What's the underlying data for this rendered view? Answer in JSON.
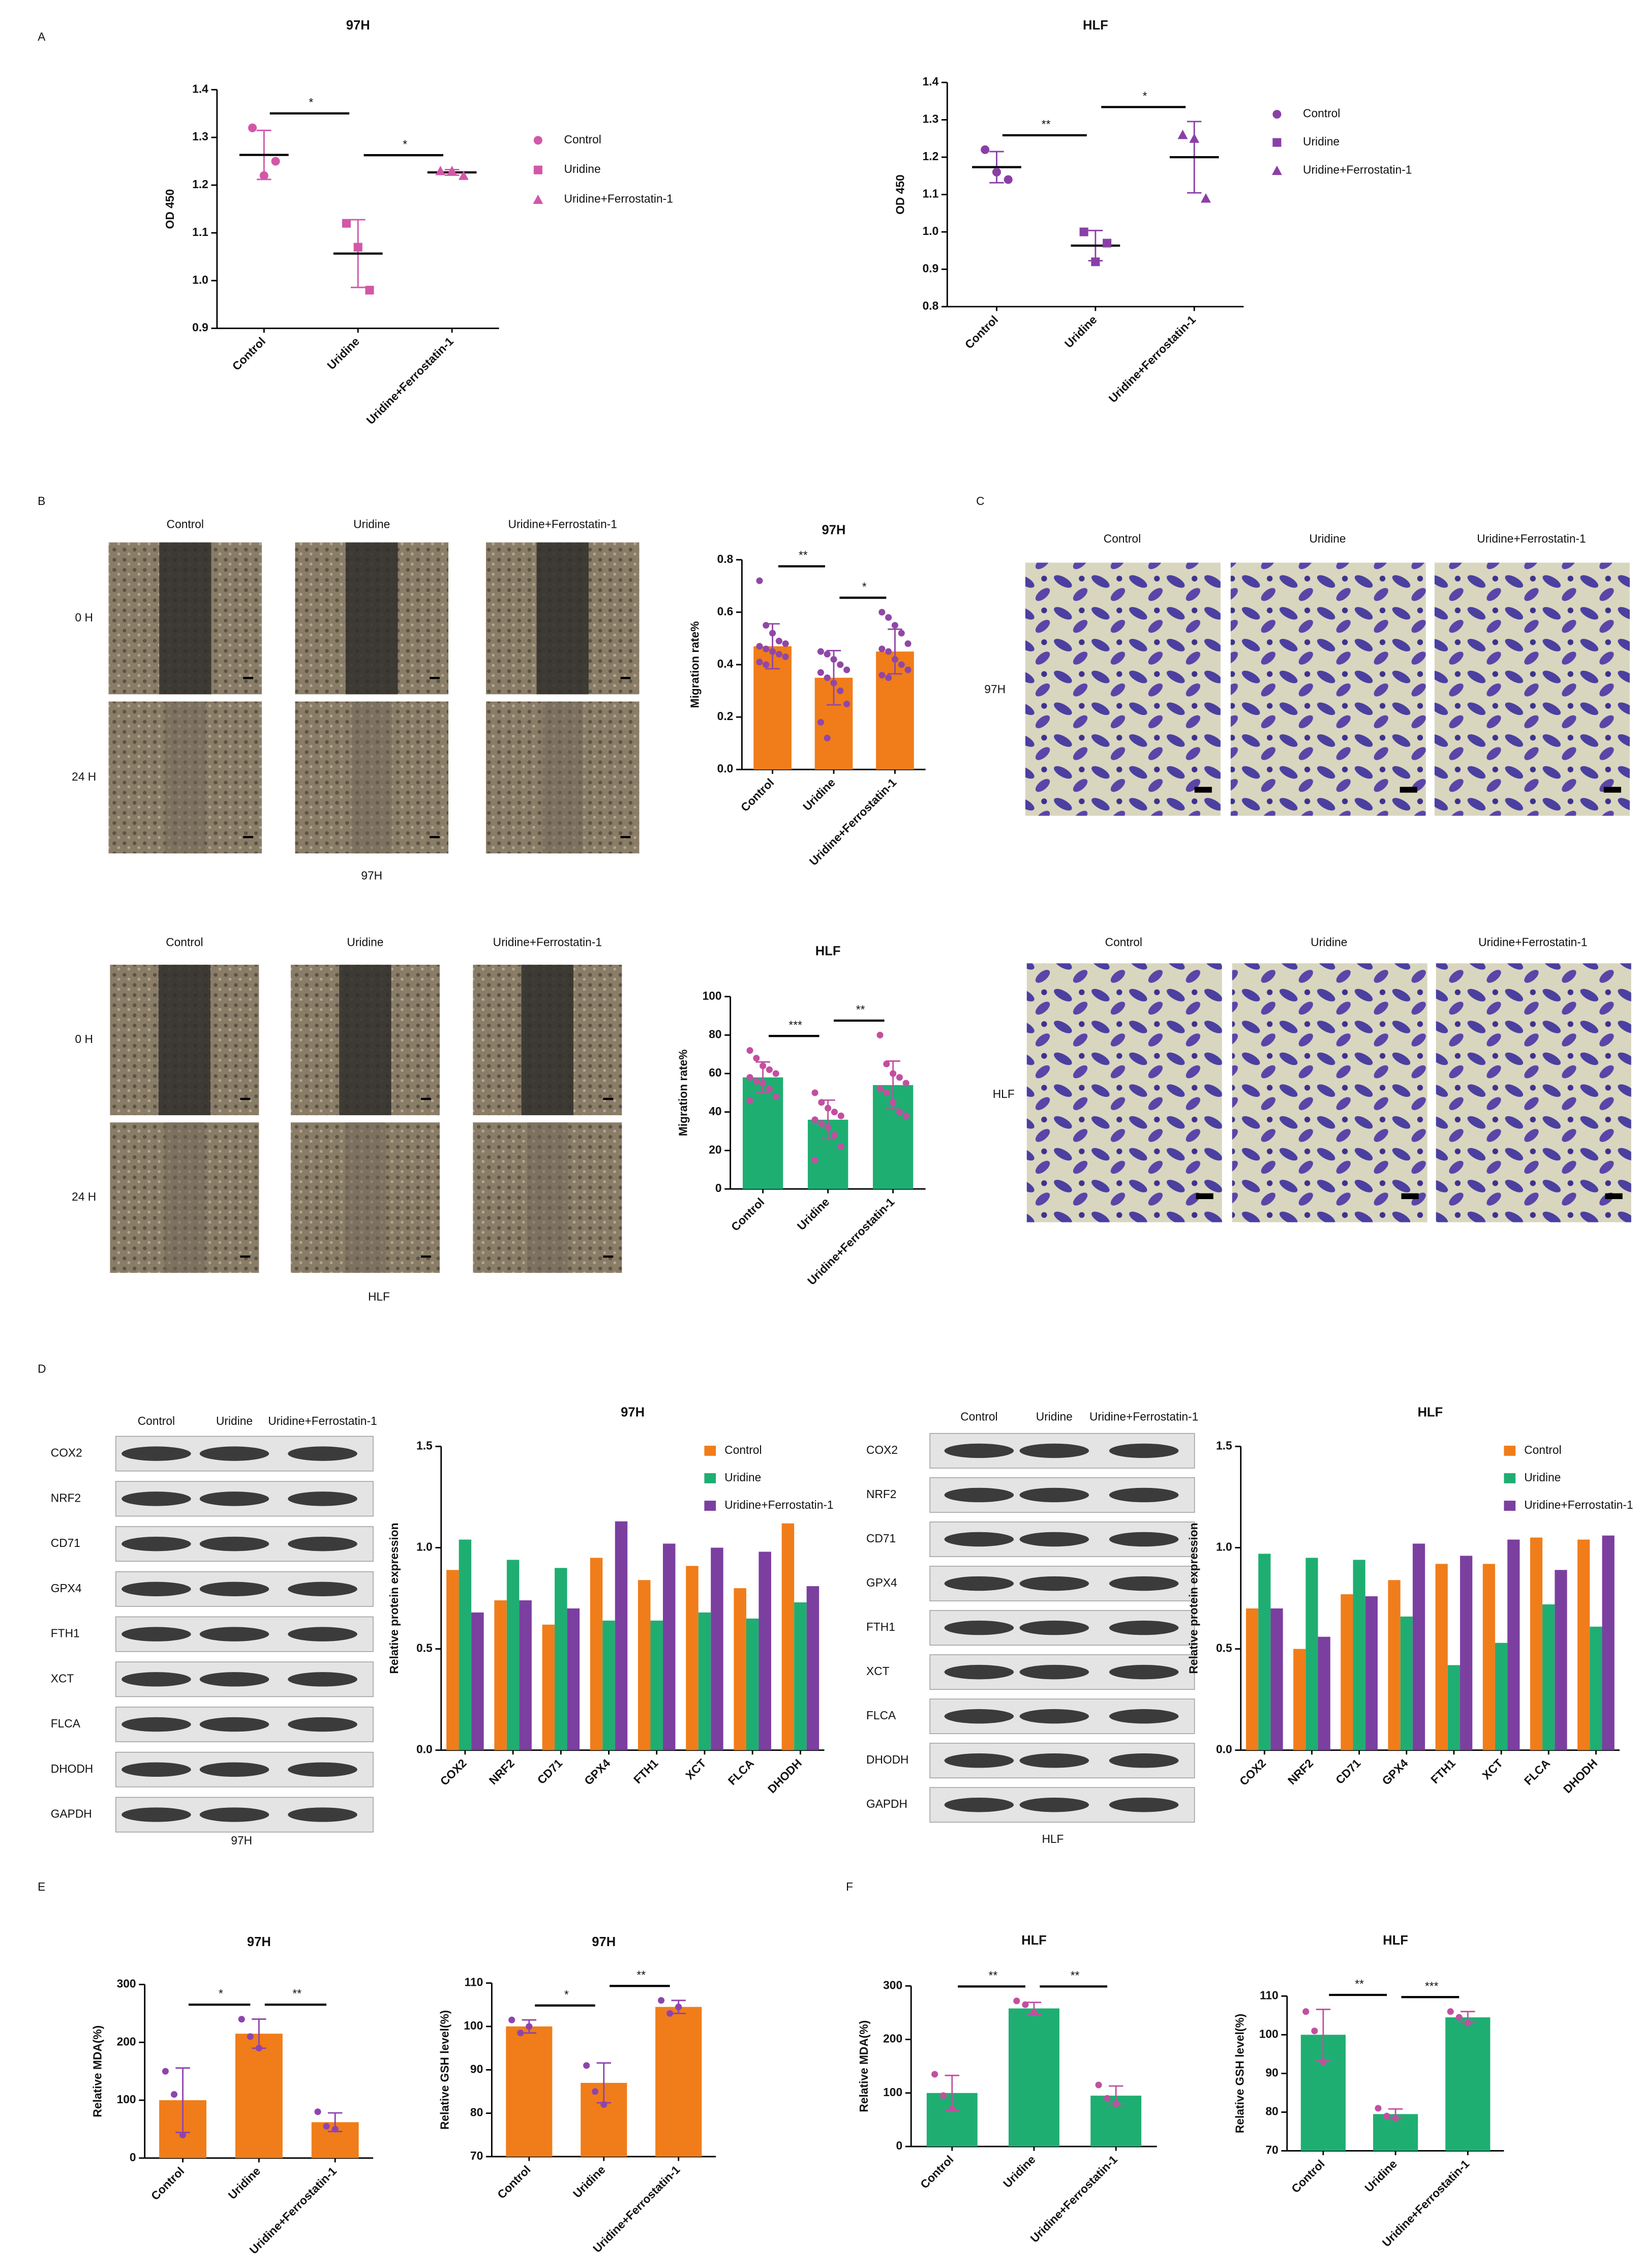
{
  "panel_letters": [
    "A",
    "B",
    "C",
    "D",
    "E",
    "F"
  ],
  "wound_healing": [
    {
      "columns": [
        "Control",
        "Uridine",
        "Uridine+Ferrostatin-1"
      ],
      "rows": [
        "0 H",
        "24 H"
      ],
      "caption": "97H"
    },
    {
      "columns": [
        "Control",
        "Uridine",
        "Uridine+Ferrostatin-1"
      ],
      "rows": [
        "0 H",
        "24 H"
      ],
      "caption": "HLF"
    }
  ],
  "transwell": [
    {
      "columns": [
        "Control",
        "Uridine",
        "Uridine+Ferrostatin-1"
      ],
      "row": "97H"
    },
    {
      "columns": [
        "Control",
        "Uridine",
        "Uridine+Ferrostatin-1"
      ],
      "row": "HLF"
    }
  ],
  "western_blot": [
    {
      "lanes": [
        "Control",
        "Uridine",
        "Uridine+Ferrostatin-1"
      ],
      "proteins": [
        "COX2",
        "NRF2",
        "CD71",
        "GPX4",
        "FTH1",
        "XCT",
        "FLCA",
        "DHODH",
        "GAPDH"
      ],
      "caption": "97H"
    },
    {
      "lanes": [
        "Control",
        "Uridine",
        "Uridine+Ferrostatin-1"
      ],
      "proteins": [
        "COX2",
        "NRF2",
        "CD71",
        "GPX4",
        "FTH1",
        "XCT",
        "FLCA",
        "DHODH",
        "GAPDH"
      ],
      "caption": "HLF"
    }
  ],
  "chart_data": [
    {
      "type": "dotplot",
      "title": "97H",
      "y_label": "OD 450",
      "categories": [
        "Control",
        "Uridine",
        "Uridine+Ferrostatin-1"
      ],
      "markers": [
        "circle",
        "square",
        "triangle"
      ],
      "color": "#d257a8",
      "values": [
        [
          1.32,
          1.22,
          1.25
        ],
        [
          1.12,
          1.07,
          0.98
        ],
        [
          1.23,
          1.23,
          1.22
        ]
      ],
      "ylim": [
        0.9,
        1.4
      ],
      "yticks": [
        0.9,
        {
          "value": 1,
          "label": "1.0"
        },
        1.1,
        1.2,
        1.3,
        1.4
      ],
      "significance": [
        {
          "label": "*",
          "pair": [
            0,
            1
          ]
        },
        {
          "label": "*",
          "pair": [
            1,
            2
          ]
        }
      ]
    },
    {
      "type": "dotplot",
      "title": "HLF",
      "y_label": "OD 450",
      "categories": [
        "Control",
        "Uridine",
        "Uridine+Ferrostatin-1"
      ],
      "markers": [
        "circle",
        "square",
        "triangle"
      ],
      "color": "#8a3fa6",
      "values": [
        [
          1.22,
          1.16,
          1.14
        ],
        [
          1.0,
          0.92,
          0.97
        ],
        [
          1.26,
          1.25,
          1.09
        ]
      ],
      "ylim": [
        0.8,
        1.4
      ],
      "yticks": [
        0.8,
        0.9,
        {
          "value": 1,
          "label": "1.0"
        },
        1.1,
        1.2,
        1.3,
        1.4
      ],
      "significance": [
        {
          "label": "**",
          "pair": [
            0,
            1
          ]
        },
        {
          "label": "*",
          "pair": [
            1,
            2
          ]
        }
      ]
    },
    {
      "type": "bar",
      "title": "97H",
      "y_label": "Migration rate%",
      "categories": [
        "Control",
        "Uridine",
        "Uridine+Ferrostatin-1"
      ],
      "color": "#f07d1a",
      "point_color": "#9047a6",
      "values": [
        0.47,
        0.35,
        0.45
      ],
      "points": [
        [
          0.72,
          0.55,
          0.52,
          0.49,
          0.48,
          0.47,
          0.46,
          0.45,
          0.44,
          0.43,
          0.41,
          0.4
        ],
        [
          0.45,
          0.44,
          0.42,
          0.4,
          0.38,
          0.37,
          0.35,
          0.33,
          0.3,
          0.25,
          0.18,
          0.12
        ],
        [
          0.6,
          0.58,
          0.55,
          0.52,
          0.48,
          0.46,
          0.45,
          0.42,
          0.4,
          0.38,
          0.36,
          0.35
        ]
      ],
      "ylim": [
        0,
        0.8
      ],
      "yticks": [
        {
          "value": 0,
          "label": "0.0"
        },
        0.2,
        0.4,
        0.6,
        0.8
      ],
      "significance": [
        {
          "label": "**",
          "pair": [
            0,
            1
          ]
        },
        {
          "label": "*",
          "pair": [
            1,
            2
          ]
        }
      ]
    },
    {
      "type": "bar",
      "title": "HLF",
      "y_label": "Migration rate%",
      "categories": [
        "Control",
        "Uridine",
        "Uridine+Ferrostatin-1"
      ],
      "color": "#1fae72",
      "point_color": "#c24fa0",
      "values": [
        58,
        36,
        54
      ],
      "points": [
        [
          72,
          68,
          64,
          62,
          60,
          58,
          56,
          55,
          52,
          48,
          46
        ],
        [
          50,
          45,
          42,
          40,
          38,
          36,
          34,
          32,
          28,
          22,
          15
        ],
        [
          80,
          65,
          60,
          58,
          55,
          52,
          50,
          45,
          40,
          38
        ]
      ],
      "ylim": [
        0,
        100
      ],
      "yticks": [
        0,
        20,
        40,
        60,
        80,
        100
      ],
      "significance": [
        {
          "label": "***",
          "pair": [
            0,
            1
          ]
        },
        {
          "label": "**",
          "pair": [
            1,
            2
          ]
        }
      ]
    },
    {
      "type": "grouped-bar",
      "title": "97H",
      "y_label": "Relative protein  expression",
      "categories": [
        "COX2",
        "NRF2",
        "CD71",
        "GPX4",
        "FTH1",
        "XCT",
        "FLCA",
        "DHODH"
      ],
      "series": [
        {
          "name": "Control",
          "color": "#f07d1a",
          "values": [
            0.89,
            0.74,
            0.62,
            0.95,
            0.84,
            0.91,
            0.8,
            1.12
          ]
        },
        {
          "name": "Uridine",
          "color": "#1fae72",
          "values": [
            1.04,
            0.94,
            0.9,
            0.64,
            0.64,
            0.68,
            0.65,
            0.73
          ]
        },
        {
          "name": "Uridine+Ferrostatin-1",
          "color": "#7b3fa0",
          "values": [
            0.68,
            0.74,
            0.7,
            1.13,
            1.02,
            1.0,
            0.98,
            0.81
          ]
        }
      ],
      "ylim": [
        0,
        1.5
      ],
      "yticks": [
        {
          "value": 0,
          "label": "0.0"
        },
        0.5,
        {
          "value": 1,
          "label": "1.0"
        },
        1.5
      ]
    },
    {
      "type": "grouped-bar",
      "title": "HLF",
      "y_label": "Relative protein  expression",
      "categories": [
        "COX2",
        "NRF2",
        "CD71",
        "GPX4",
        "FTH1",
        "XCT",
        "FLCA",
        "DHODH"
      ],
      "series": [
        {
          "name": "Control",
          "color": "#f07d1a",
          "values": [
            0.7,
            0.5,
            0.77,
            0.84,
            0.92,
            0.92,
            1.05,
            1.04
          ]
        },
        {
          "name": "Uridine",
          "color": "#1fae72",
          "values": [
            0.97,
            0.95,
            0.94,
            0.66,
            0.42,
            0.53,
            0.72,
            0.61
          ]
        },
        {
          "name": "Uridine+Ferrostatin-1",
          "color": "#7b3fa0",
          "values": [
            0.7,
            0.56,
            0.76,
            1.02,
            0.96,
            1.04,
            0.89,
            1.06
          ]
        }
      ],
      "ylim": [
        0,
        1.5
      ],
      "yticks": [
        {
          "value": 0,
          "label": "0.0"
        },
        0.5,
        {
          "value": 1,
          "label": "1.0"
        },
        1.5
      ]
    },
    {
      "type": "bar",
      "title": "97H",
      "y_label": "Relative MDA(%)",
      "categories": [
        "Control",
        "Uridine",
        "Uridine+Ferrostatin-1"
      ],
      "color": "#f07d1a",
      "point_color": "#8e44ad",
      "values": [
        100,
        215,
        62
      ],
      "points": [
        [
          150,
          110,
          40
        ],
        [
          240,
          210,
          190
        ],
        [
          80,
          55,
          50
        ]
      ],
      "ylim": [
        0,
        300
      ],
      "yticks": [
        0,
        100,
        200,
        300
      ],
      "significance": [
        {
          "label": "*",
          "pair": [
            0,
            1
          ]
        },
        {
          "label": "**",
          "pair": [
            1,
            2
          ]
        }
      ]
    },
    {
      "type": "bar",
      "title": "97H",
      "y_label": "Relative GSH level(%)",
      "categories": [
        "Control",
        "Uridine",
        "Uridine+Ferrostatin-1"
      ],
      "color": "#f07d1a",
      "point_color": "#8e44ad",
      "values": [
        100,
        87,
        104.5
      ],
      "points": [
        [
          101.5,
          98.5,
          100
        ],
        [
          91,
          85,
          82
        ],
        [
          106,
          103,
          104.5
        ]
      ],
      "ylim": [
        70,
        110
      ],
      "yticks": [
        70,
        80,
        90,
        100,
        110
      ],
      "significance": [
        {
          "label": "*",
          "pair": [
            0,
            1
          ]
        },
        {
          "label": "**",
          "pair": [
            1,
            2
          ]
        }
      ]
    },
    {
      "type": "bar",
      "title": "HLF",
      "y_label": "Relative MDA(%)",
      "categories": [
        "Control",
        "Uridine",
        "Uridine+Ferrostatin-1"
      ],
      "color": "#1fae72",
      "point_color": "#c24fa0",
      "values": [
        100,
        258,
        95
      ],
      "points": [
        [
          135,
          95,
          70
        ],
        [
          272,
          265,
          250
        ],
        [
          115,
          90,
          80
        ]
      ],
      "ylim": [
        0,
        300
      ],
      "yticks": [
        0,
        100,
        200,
        300
      ],
      "significance": [
        {
          "label": "**",
          "pair": [
            0,
            1
          ]
        },
        {
          "label": "**",
          "pair": [
            1,
            2
          ]
        }
      ]
    },
    {
      "type": "bar",
      "title": "HLF",
      "y_label": "Relative GSH level(%)",
      "categories": [
        "Control",
        "Uridine",
        "Uridine+Ferrostatin-1"
      ],
      "color": "#1fae72",
      "point_color": "#c24fa0",
      "values": [
        100,
        79.5,
        104.5
      ],
      "points": [
        [
          106,
          101,
          93
        ],
        [
          81,
          79,
          78.5
        ],
        [
          106,
          104.5,
          103
        ]
      ],
      "ylim": [
        70,
        110
      ],
      "yticks": [
        70,
        80,
        90,
        100,
        110
      ],
      "significance": [
        {
          "label": "**",
          "pair": [
            0,
            1
          ]
        },
        {
          "label": "***",
          "pair": [
            1,
            2
          ]
        }
      ]
    }
  ]
}
